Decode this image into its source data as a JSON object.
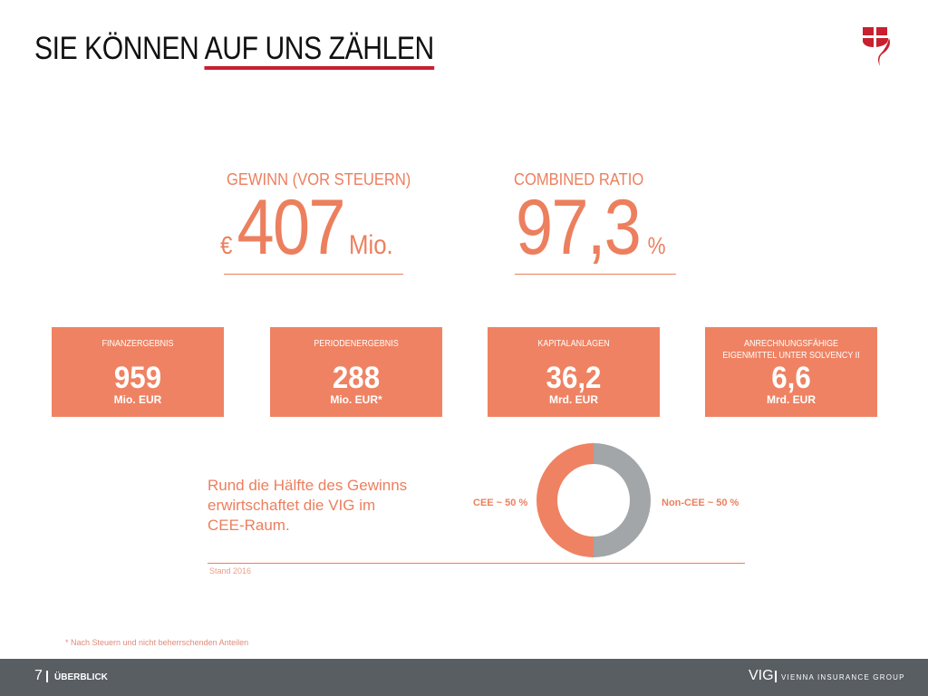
{
  "title": {
    "part1": "SIE KÖNNEN ",
    "part2": "AUF UNS ZÄHLEN"
  },
  "colors": {
    "accent": "#ec7f5e",
    "red": "#c8202e",
    "gray": "#a2a6a8",
    "footer": "#585e61"
  },
  "kpi_profit": {
    "label": "GEWINN (VOR STEUERN)",
    "currency": "€",
    "value": "407",
    "unit": "Mio."
  },
  "kpi_ratio": {
    "label": "COMBINED RATIO",
    "value": "97,3",
    "unit": "%"
  },
  "boxes": [
    {
      "label": "FINANZERGEBNIS",
      "value": "959",
      "unit": "Mio. EUR"
    },
    {
      "label": "PERIODENERGEBNIS",
      "value": "288",
      "unit": "Mio. EUR*"
    },
    {
      "label": "KAPITALANLAGEN",
      "value": "36,2",
      "unit": "Mrd. EUR"
    },
    {
      "label": "ANRECHNUNGSFÄHIGE EIGENMITTEL UNTER SOLVENCY II",
      "value": "6,6",
      "unit": "Mrd. EUR"
    }
  ],
  "cee": {
    "text": "Rund die Hälfte des Gewinns erwirtschaftet die VIG im CEE-Raum.",
    "left_label": "CEE ~ 50 %",
    "right_label": "Non-CEE ~ 50 %",
    "cee_share": 50,
    "source": "Stand 2016"
  },
  "footnote": "* Nach Steuern und nicht beherrschenden Anteilen",
  "footer": {
    "page": "7",
    "section": "ÜBERBLICK",
    "brand": "VIG",
    "brand_full": "VIENNA INSURANCE GROUP"
  }
}
